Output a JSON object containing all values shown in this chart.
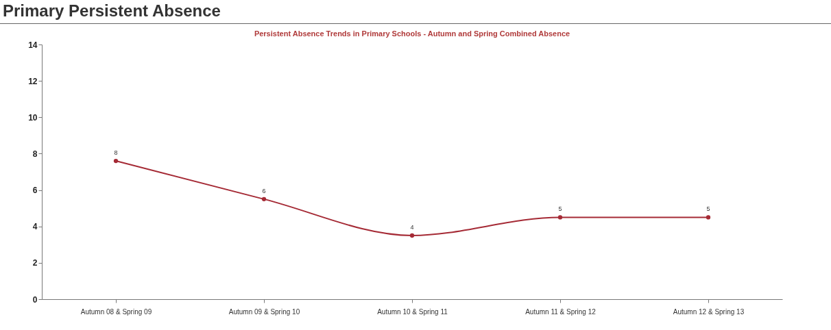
{
  "chart_data": {
    "type": "line",
    "title": "Primary Persistent Absence",
    "subtitle": "Persistent Absence Trends in Primary Schools - Autumn and Spring Combined Absence",
    "categories": [
      "Autumn 08 & Spring 09",
      "Autumn 09 & Spring 10",
      "Autumn 10 & Spring 11",
      "Autumn 11 & Spring 12",
      "Autumn 12 & Spring 13"
    ],
    "series": [
      {
        "color": "#a52a35",
        "values": [
          7.6,
          5.5,
          3.5,
          4.5,
          4.5
        ],
        "value_labels": [
          "8",
          "6",
          "4",
          "5",
          "5"
        ]
      }
    ],
    "ylim": [
      0,
      14
    ],
    "yticks": [
      0,
      2,
      4,
      6,
      8,
      10,
      12,
      14
    ],
    "grid": false,
    "marker": "circle"
  }
}
